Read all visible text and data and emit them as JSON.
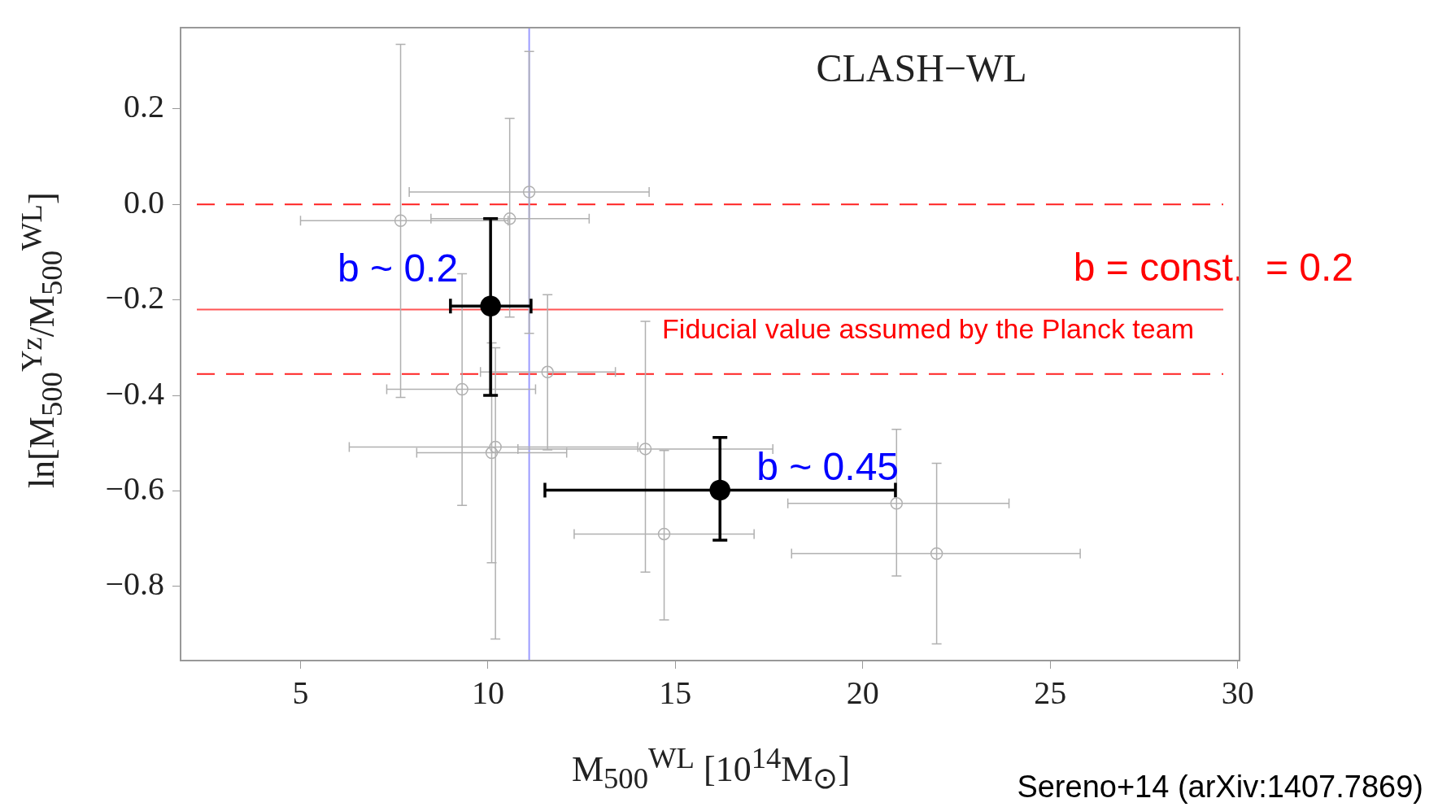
{
  "chart_data": {
    "type": "scatter",
    "xlabel": "M$_{500}$$^{WL}$ [10$^{14}$M$_{⊙}$]",
    "ylabel": "ln[M$_{500}$$^{Yz}$/M$_{500}$$^{WL}$]",
    "xlim": [
      1.8,
      30.05
    ],
    "ylim": [
      -0.955,
      0.37
    ],
    "xticks": [
      5,
      10,
      15,
      20,
      25,
      30
    ],
    "yticks": [
      {
        "value": -0.8,
        "label": "−0.8"
      },
      {
        "value": -0.6,
        "label": "−0.6"
      },
      {
        "value": -0.4,
        "label": "−0.4"
      },
      {
        "value": -0.2,
        "label": "−0.2"
      },
      {
        "value": 0,
        "label": "0.0"
      },
      {
        "value": 0.2,
        "label": "0.2"
      }
    ],
    "grid": false,
    "legend": false,
    "marker": "circle",
    "series": [
      {
        "color": "#b0b0b0",
        "x": [
          7.67,
          11.1,
          10.58,
          9.31,
          11.59,
          10.2,
          10.1,
          14.2,
          14.7,
          20.9,
          21.97
        ],
        "values": [
          -0.034,
          0.026,
          -0.03,
          -0.387,
          -0.351,
          -0.508,
          -0.52,
          -0.512,
          -0.69,
          -0.626,
          -0.731
        ],
        "errors": [
          [
            -0.404,
            0.335
          ],
          [
            -0.27,
            0.32
          ],
          [
            -0.236,
            0.18
          ],
          [
            -0.63,
            -0.145
          ],
          [
            -0.514,
            -0.189
          ],
          [
            -0.91,
            -0.3
          ],
          [
            -0.75,
            -0.29
          ],
          [
            -0.77,
            -0.245
          ],
          [
            -0.87,
            -0.515
          ],
          [
            -0.778,
            -0.471
          ],
          [
            -0.92,
            -0.542
          ]
        ],
        "xerrors": [
          [
            5.0,
            10.54
          ],
          [
            7.9,
            14.3
          ],
          [
            8.48,
            12.7
          ],
          [
            7.3,
            11.27
          ],
          [
            9.8,
            13.4
          ],
          [
            6.3,
            14.0
          ],
          [
            8.1,
            12.1
          ],
          [
            10.8,
            17.6
          ],
          [
            12.3,
            17.1
          ],
          [
            18.0,
            23.9
          ],
          [
            18.1,
            25.8
          ]
        ]
      },
      {
        "color": "#000000",
        "x": [
          10.07,
          16.19
        ],
        "values": [
          -0.213,
          -0.598
        ],
        "errors": [
          [
            -0.4,
            -0.03
          ],
          [
            -0.703,
            -0.488
          ]
        ],
        "xerrors": [
          [
            9.0,
            11.15
          ],
          [
            11.52,
            20.87
          ]
        ]
      }
    ],
    "ref_lines": [
      {
        "axis": "y",
        "value": -0.22,
        "color": "#ff5555",
        "line_style": "solid"
      },
      {
        "axis": "y",
        "value": 0,
        "color": "#ff2222",
        "line_style": "dashed"
      },
      {
        "axis": "y",
        "value": -0.355,
        "color": "#ff2222",
        "line_style": "dashed"
      },
      {
        "axis": "x",
        "value": 11.1,
        "color": "#9c9cff",
        "line_style": "solid"
      }
    ],
    "annotations": [
      "CLASH−WL",
      "Fiducial value assumed by the Planck team",
      "Sereno+14 (arXiv:1407.7869)",
      "b = const.  = 0.2",
      {
        "text": "b ~ 0.2",
        "x": 10.07,
        "y": -0.213
      },
      {
        "text": "b ~ 0.45",
        "x": 16.19,
        "y": -0.598
      }
    ]
  }
}
